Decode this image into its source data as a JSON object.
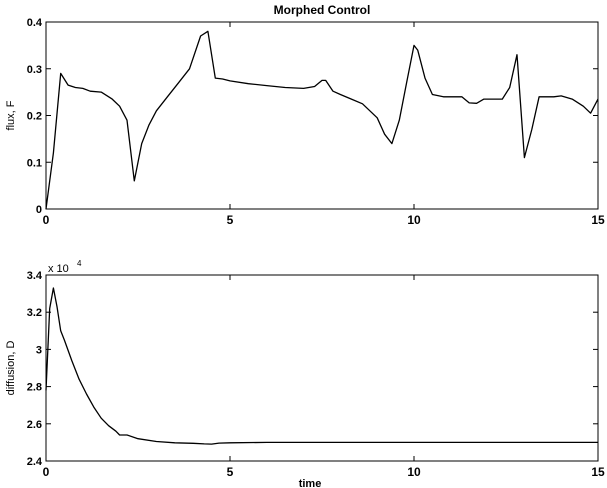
{
  "figure": {
    "title": "Morphed Control"
  },
  "chart_data": [
    {
      "type": "line",
      "title": "Morphed Control",
      "xlabel": "",
      "ylabel": "flux, F",
      "xlim": [
        0,
        15
      ],
      "ylim": [
        0,
        0.4
      ],
      "xticks": [
        "0",
        "5",
        "10",
        "15"
      ],
      "yticks": [
        "0",
        "0.1",
        "0.2",
        "0.3",
        "0.4"
      ],
      "grid": false,
      "series": [
        {
          "x": [
            0,
            0.2,
            0.4,
            0.6,
            0.8,
            1.0,
            1.2,
            1.5,
            1.8,
            2.0,
            2.2,
            2.4,
            2.6,
            2.8,
            3.0,
            3.3,
            3.6,
            3.9,
            4.2,
            4.4,
            4.6,
            4.8,
            5.0,
            5.5,
            6.0,
            6.5,
            7.0,
            7.3,
            7.5,
            7.6,
            7.8,
            8.0,
            8.3,
            8.6,
            9.0,
            9.2,
            9.4,
            9.6,
            9.8,
            10.0,
            10.1,
            10.3,
            10.5,
            10.8,
            11.0,
            11.3,
            11.5,
            11.7,
            11.9,
            12.2,
            12.4,
            12.6,
            12.8,
            13.0,
            13.2,
            13.4,
            13.6,
            13.8,
            14.0,
            14.3,
            14.6,
            14.8,
            15.0
          ],
          "y": [
            0.0,
            0.12,
            0.29,
            0.265,
            0.26,
            0.258,
            0.252,
            0.25,
            0.235,
            0.22,
            0.19,
            0.06,
            0.14,
            0.18,
            0.21,
            0.24,
            0.27,
            0.3,
            0.37,
            0.38,
            0.28,
            0.278,
            0.274,
            0.268,
            0.264,
            0.26,
            0.258,
            0.262,
            0.275,
            0.275,
            0.252,
            0.245,
            0.235,
            0.225,
            0.195,
            0.16,
            0.14,
            0.19,
            0.27,
            0.35,
            0.34,
            0.28,
            0.245,
            0.24,
            0.24,
            0.24,
            0.227,
            0.226,
            0.235,
            0.235,
            0.235,
            0.26,
            0.33,
            0.11,
            0.17,
            0.24,
            0.24,
            0.24,
            0.242,
            0.235,
            0.22,
            0.205,
            0.235
          ]
        }
      ]
    },
    {
      "type": "line",
      "title": "",
      "xlabel": "time",
      "ylabel": "diffusion, D",
      "xlim": [
        0,
        15
      ],
      "ylim": [
        24000,
        34000
      ],
      "xticks": [
        "0",
        "5",
        "10",
        "15"
      ],
      "yticks": [
        "2.4",
        "2.6",
        "2.8",
        "3",
        "3.2",
        "3.4"
      ],
      "exponent_label": "x 10",
      "exponent_power": "4",
      "grid": false,
      "series": [
        {
          "x": [
            0,
            0.1,
            0.2,
            0.3,
            0.4,
            0.5,
            0.7,
            0.9,
            1.1,
            1.3,
            1.5,
            1.7,
            1.9,
            2.0,
            2.2,
            2.5,
            3.0,
            3.5,
            4.0,
            4.3,
            4.5,
            4.7,
            5.0,
            6.0,
            8.0,
            10.0,
            12.0,
            15.0
          ],
          "y": [
            27800,
            32200,
            33300,
            32300,
            31000,
            30500,
            29400,
            28400,
            27600,
            26900,
            26300,
            25900,
            25600,
            25400,
            25400,
            25200,
            25050,
            24980,
            24950,
            24920,
            24910,
            24960,
            24980,
            25000,
            25000,
            25000,
            25000,
            25000
          ]
        }
      ]
    }
  ]
}
